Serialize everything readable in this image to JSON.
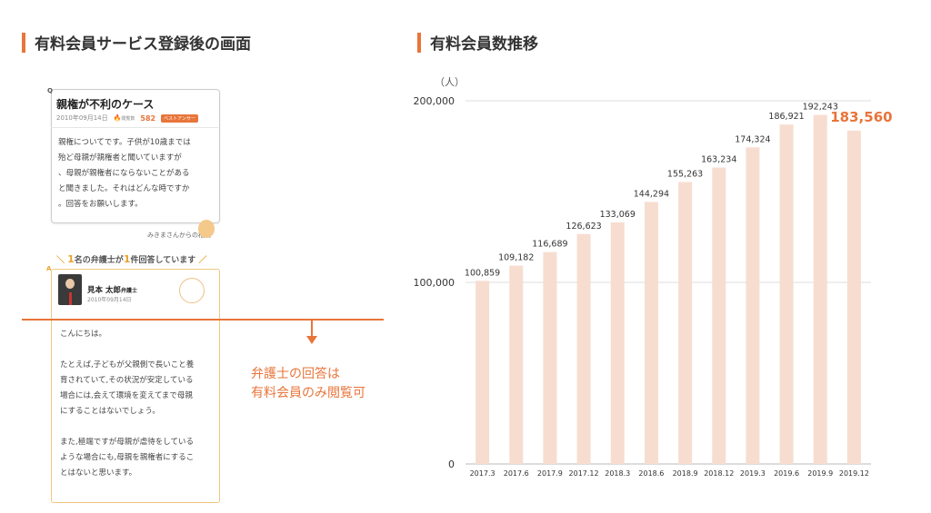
{
  "left": {
    "title": "有料会員サービス登録後の画面",
    "question": {
      "badge": "Q",
      "title": "親権が不利のケース",
      "date": "2010年09月14日",
      "count_label": "閲覧数",
      "count": "582",
      "best_label": "ベストアンサー",
      "body": [
        "親権についてです。子供が10歳までは",
        "殆ど母親が親権者と聞いていますが",
        "、母親が親権者にならないことがある",
        "と聞きました。それはどんな時ですか",
        "。回答をお願いします。"
      ],
      "asker": "みきまさんからの相談"
    },
    "answer_header": {
      "num1": "1",
      "mid": "名の弁護士が",
      "num2": "1",
      "end": "件回答しています"
    },
    "answer": {
      "badge": "A",
      "lawyer_name": "見本 太郎",
      "lawyer_role": "弁護士",
      "date": "2010年09月14日",
      "body": [
        "こんにちは。",
        "",
        "たとえば,子どもが父親側で長いこと養",
        "育されていて,その状況が安定している",
        "場合には,会えて環境を変えてまで母親",
        "にすることはないでしょう。",
        "",
        "また,極端ですが母親が虐待をしている",
        "ような場合にも,母親を親権者にするこ",
        "とはないと思います。"
      ]
    },
    "note": [
      "弁護士の回答は",
      "有料会員のみ閲覧可"
    ]
  },
  "right": {
    "title": "有料会員数推移"
  },
  "colors": {
    "accent": "#e8753a",
    "bar": "#f7ddd0",
    "label": "#333333"
  },
  "chart_data": {
    "type": "bar",
    "title": "有料会員数推移",
    "ylabel": "（人）",
    "xlabel": "",
    "ylim": [
      0,
      200000
    ],
    "yticks": [
      0,
      100000,
      200000
    ],
    "ytick_labels": [
      "0",
      "100,000",
      "200,000"
    ],
    "categories": [
      "2017.3",
      "2017.6",
      "2017.9",
      "2017.12",
      "2018.3",
      "2018.6",
      "2018.9",
      "2018.12",
      "2019.3",
      "2019.6",
      "2019.9",
      "2019.12"
    ],
    "values": [
      100859,
      109182,
      116689,
      126623,
      133069,
      144294,
      155263,
      163234,
      174324,
      186921,
      192243,
      183560
    ],
    "value_labels": [
      "100,859",
      "109,182",
      "116,689",
      "126,623",
      "133,069",
      "144,294",
      "155,263",
      "163,234",
      "174,324",
      "186,921",
      "192,243",
      "183,560"
    ],
    "highlight_index": 11,
    "grid": true
  }
}
